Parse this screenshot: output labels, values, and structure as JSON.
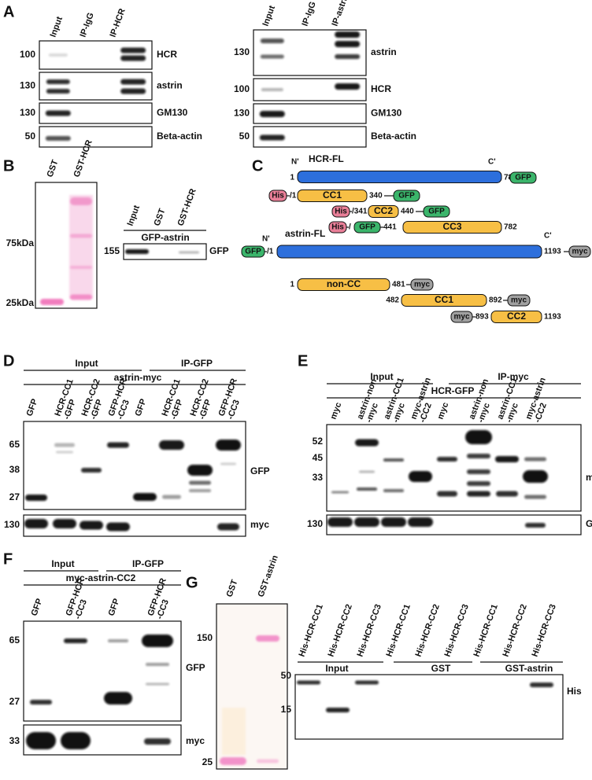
{
  "panel_a": {
    "letter": "A",
    "left": {
      "lanes": [
        "Input",
        "IP-IgG",
        "IP-HCR"
      ],
      "blots": [
        {
          "mw": "100",
          "label": "HCR"
        },
        {
          "mw": "130",
          "label": "astrin"
        },
        {
          "mw": "130",
          "label": "GM130"
        },
        {
          "mw": "50",
          "label": "Beta-actin"
        }
      ]
    },
    "right": {
      "lanes": [
        "Input",
        "IP-IgG",
        "IP-astrin"
      ],
      "blots": [
        {
          "mw": "130",
          "label": "astrin"
        },
        {
          "mw": "100",
          "label": "HCR"
        },
        {
          "mw": "130",
          "label": "GM130"
        },
        {
          "mw": "50",
          "label": "Beta-actin"
        }
      ]
    }
  },
  "panel_b": {
    "letter": "B",
    "gel": {
      "lanes": [
        "GST",
        "GST-HCR"
      ],
      "markers": [
        "75kDa",
        "25kDa"
      ]
    },
    "blot": {
      "lanes": [
        "Input",
        "GST",
        "GST-HCR"
      ],
      "group": "GFP-astrin",
      "mw": "155",
      "label": "GFP"
    }
  },
  "panel_c": {
    "letter": "C",
    "hcr": {
      "n_term": "N'",
      "name": "HCR-FL",
      "c_term": "C'",
      "start": "1",
      "end": "782",
      "c_tag": "GFP"
    },
    "hcr_constructs": [
      {
        "n_tag": "His",
        "start": "/1",
        "domain": "CC1",
        "end": "340",
        "c_tag": "GFP"
      },
      {
        "n_tag": "His",
        "start": "/341",
        "domain": "CC2",
        "end": "440",
        "c_tag": "GFP"
      },
      {
        "n_tag": "His",
        "sep": "/",
        "n_tag2": "GFP",
        "start": "441",
        "domain": "CC3",
        "end": "782"
      }
    ],
    "astrin": {
      "n_tag": "GFP",
      "start": "/1",
      "n_term": "N'",
      "name": "astrin-FL",
      "c_term": "C'",
      "end": "1193",
      "c_tag": "myc"
    },
    "astrin_constructs": [
      {
        "start": "1",
        "domain": "non-CC",
        "end": "481",
        "c_tag": "myc"
      },
      {
        "start": "482",
        "domain": "CC1",
        "end": "892",
        "c_tag": "myc"
      },
      {
        "n_tag": "myc",
        "start": "893",
        "domain": "CC2",
        "end": "1193"
      }
    ]
  },
  "panel_d": {
    "letter": "D",
    "groups": [
      "Input",
      "IP-GFP"
    ],
    "bait": "astrin-myc",
    "lanes": [
      [
        "GFP"
      ],
      [
        "HCR-CC1",
        "-GFP"
      ],
      [
        "HCR-CC2",
        "-GFP"
      ],
      [
        "GFP-HCR",
        "-CC3"
      ],
      [
        "GFP"
      ],
      [
        "HCR-CC1",
        "-GFP"
      ],
      [
        "HCR-CC2",
        "-GFP"
      ],
      [
        "GFP-HCR",
        "-CC3"
      ]
    ],
    "blots": [
      {
        "mw": [
          "65",
          "38",
          "27"
        ],
        "label": "GFP"
      },
      {
        "mw": [
          "130"
        ],
        "label": "myc"
      }
    ]
  },
  "panel_e": {
    "letter": "E",
    "groups": [
      "Input",
      "IP-myc"
    ],
    "bait": "HCR-GFP",
    "lanes": [
      [
        "myc"
      ],
      [
        "astrin-non",
        "-myc"
      ],
      [
        "astrin-CC1",
        "-myc"
      ],
      [
        "myc-astrin",
        "-CC2"
      ],
      [
        "myc"
      ],
      [
        "astrin-non",
        "-myc"
      ],
      [
        "astrin-CC1",
        "-myc"
      ],
      [
        "myc-astrin",
        "-CC2"
      ]
    ],
    "blots": [
      {
        "mw": [
          "52",
          "45",
          "33"
        ],
        "label": "myc"
      },
      {
        "mw": [
          "130"
        ],
        "label": "GFP"
      }
    ]
  },
  "panel_f": {
    "letter": "F",
    "groups": [
      "Input",
      "IP-GFP"
    ],
    "bait": "myc-astrin-CC2",
    "lanes": [
      [
        "GFP"
      ],
      [
        "GFP-HCR",
        "-CC3"
      ],
      [
        "GFP"
      ],
      [
        "GFP-HCR",
        "-CC3"
      ]
    ],
    "blots": [
      {
        "mw": [
          "65",
          "27"
        ],
        "label": "GFP"
      },
      {
        "mw": [
          "33"
        ],
        "label": "myc"
      }
    ]
  },
  "panel_g": {
    "letter": "G",
    "gel": {
      "lanes": [
        "GST",
        "GST-astrin"
      ],
      "markers": [
        "150",
        "25"
      ]
    },
    "blot": {
      "lanes": [
        "His-HCR-CC1",
        "His-HCR-CC2",
        "His-HCR-CC3",
        "His-HCR-CC1",
        "His-HCR-CC2",
        "His-HCR-CC3",
        "His-HCR-CC1",
        "His-HCR-CC2",
        "His-HCR-CC3"
      ],
      "groups": [
        "Input",
        "GST",
        "GST-astrin"
      ],
      "mw": [
        "50",
        "15"
      ],
      "label": "His"
    }
  }
}
